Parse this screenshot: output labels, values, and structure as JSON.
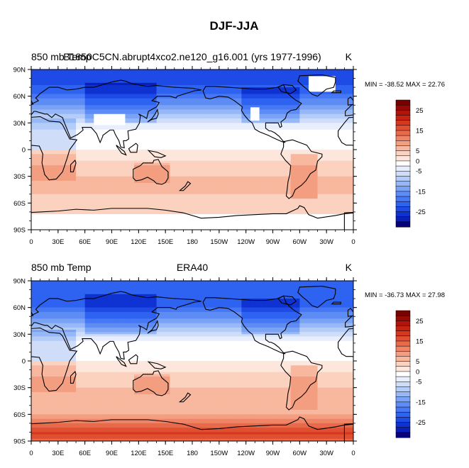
{
  "figure_title": "DJF-JJA",
  "colors": {
    "levels": [
      -30,
      -27.5,
      -25,
      -22.5,
      -20,
      -17.5,
      -15,
      -12.5,
      -10,
      -7.5,
      -5,
      -2.5,
      0,
      2.5,
      5,
      7.5,
      10,
      12.5,
      15,
      17.5,
      20,
      22.5,
      25,
      27.5
    ],
    "palette": [
      "#08007a",
      "#0a1eb8",
      "#0f32d2",
      "#1e4ae6",
      "#2e62f0",
      "#4677f5",
      "#5e8cf5",
      "#7aa3f5",
      "#97b8f7",
      "#b4ccf8",
      "#d0ddf9",
      "#e8eefb",
      "#ffffff",
      "#fde7dc",
      "#fbd1bf",
      "#f8b89f",
      "#f49e81",
      "#ef8466",
      "#e9694b",
      "#e14f33",
      "#d6381f",
      "#c52412",
      "#b0140a",
      "#950a06",
      "#7a0000"
    ],
    "missing": "#ffffff",
    "coastline": "#000000"
  },
  "chart_data": [
    {
      "type": "heatmap",
      "left_title": "850 mb Temp",
      "center_title": "B1850C5CN.abrupt4xco2.ne120_g16.001 (yrs 1977-1996)",
      "units": "K",
      "stats": "MIN = -38.52 MAX =  22.76",
      "x_ticks": [
        "0",
        "30E",
        "60E",
        "90E",
        "120E",
        "150E",
        "180",
        "150W",
        "120W",
        "90W",
        "60W",
        "30W",
        "0"
      ],
      "y_ticks": [
        "90N",
        "60N",
        "30N",
        "0",
        "30S",
        "60S",
        "90S"
      ],
      "xlim": [
        0,
        360
      ],
      "ylim": [
        -90,
        90
      ],
      "colorbar_labels": [
        "25",
        "15",
        "5",
        "0",
        "-5",
        "-15",
        "-25"
      ],
      "zonal_profile": {
        "lat": [
          90,
          80,
          70,
          60,
          50,
          40,
          30,
          20,
          10,
          0,
          -10,
          -20,
          -30,
          -40,
          -50,
          -60,
          -70,
          -80,
          -90
        ],
        "value": [
          -24,
          -24,
          -22,
          -19,
          -15,
          -10,
          -5,
          -2,
          -1,
          0,
          2,
          4,
          5,
          5,
          5,
          4,
          3,
          null,
          null
        ]
      },
      "missing_regions": [
        "Tibetan Plateau",
        "Rocky Mountains",
        "Greenland",
        "Antarctica"
      ]
    },
    {
      "type": "heatmap",
      "left_title": "850 mb Temp",
      "center_title": "ERA40",
      "units": "K",
      "stats": "MIN = -36.73 MAX =  27.98",
      "x_ticks": [
        "0",
        "30E",
        "60E",
        "90E",
        "120E",
        "150E",
        "180",
        "150W",
        "120W",
        "90W",
        "60W",
        "30W",
        "0"
      ],
      "y_ticks": [
        "90N",
        "60N",
        "30N",
        "0",
        "30S",
        "60S",
        "90S"
      ],
      "xlim": [
        0,
        360
      ],
      "ylim": [
        -90,
        90
      ],
      "colorbar_labels": [
        "25",
        "15",
        "5",
        "0",
        "-5",
        "-15",
        "-25"
      ],
      "zonal_profile": {
        "lat": [
          90,
          80,
          70,
          60,
          50,
          40,
          30,
          20,
          10,
          0,
          -10,
          -20,
          -30,
          -40,
          -50,
          -60,
          -70,
          -80,
          -90
        ],
        "value": [
          -20,
          -22,
          -22,
          -20,
          -16,
          -11,
          -6,
          -2,
          -1,
          0,
          2,
          4,
          5,
          5,
          5,
          7,
          12,
          18,
          14
        ]
      },
      "missing_regions": []
    }
  ]
}
